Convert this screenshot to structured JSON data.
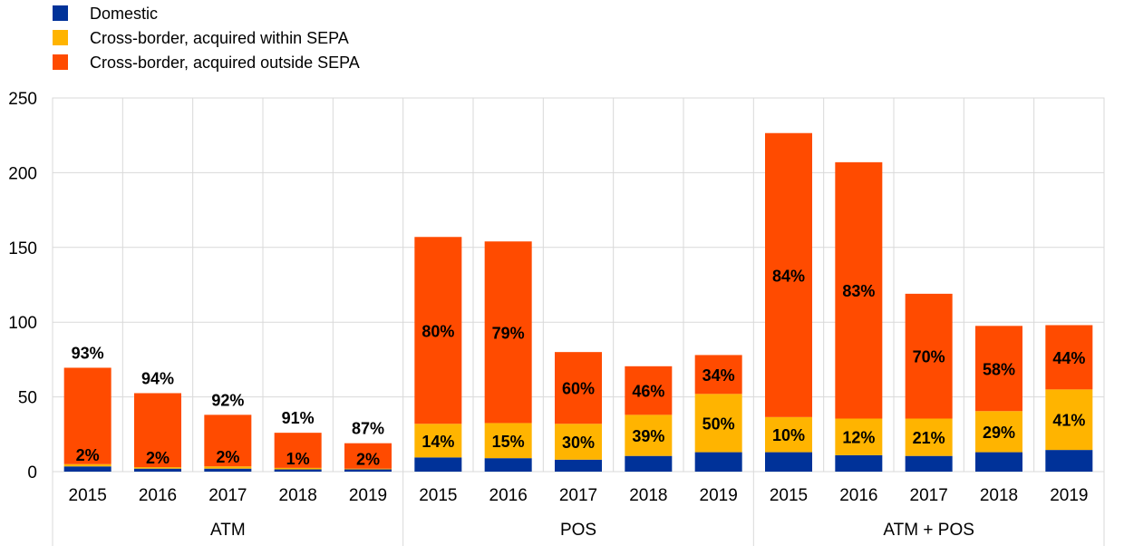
{
  "chart_data": {
    "type": "bar",
    "stacked": true,
    "groups": [
      {
        "name": "ATM",
        "categories": [
          "2015",
          "2016",
          "2017",
          "2018",
          "2019"
        ]
      },
      {
        "name": "POS",
        "categories": [
          "2015",
          "2016",
          "2017",
          "2018",
          "2019"
        ]
      },
      {
        "name": "ATM + POS",
        "categories": [
          "2015",
          "2016",
          "2017",
          "2018",
          "2019"
        ]
      }
    ],
    "series": [
      {
        "name": "Domestic",
        "color": "#003299",
        "values": [
          3.5,
          2,
          2,
          1.5,
          1.5,
          9.5,
          9,
          8,
          10.5,
          13,
          13,
          11,
          10.5,
          13,
          14.5
        ]
      },
      {
        "name": "Cross-border, acquired within SEPA",
        "color": "#FFB400",
        "values": [
          1.5,
          1,
          1.5,
          1,
          0.5,
          22.5,
          23.5,
          24,
          27.5,
          39,
          23.5,
          24.5,
          25,
          27.5,
          40.5
        ]
      },
      {
        "name": "Cross-border, acquired outside SEPA",
        "color": "#FF4B00",
        "values": [
          64.5,
          49.5,
          34.5,
          23.5,
          17,
          125,
          121.5,
          48,
          32.5,
          26,
          190,
          171.5,
          83.5,
          57,
          43
        ]
      }
    ],
    "data_labels": {
      "within_sepa": [
        "2%",
        "2%",
        "2%",
        "1%",
        "2%",
        "14%",
        "15%",
        "30%",
        "39%",
        "50%",
        "10%",
        "12%",
        "21%",
        "29%",
        "41%"
      ],
      "outside_sepa": [
        "93%",
        "94%",
        "92%",
        "91%",
        "87%",
        "80%",
        "79%",
        "60%",
        "46%",
        "34%",
        "84%",
        "83%",
        "70%",
        "58%",
        "44%"
      ]
    },
    "outside_label_on_top": [
      true,
      true,
      true,
      true,
      true,
      false,
      false,
      false,
      false,
      false,
      false,
      false,
      false,
      false,
      false
    ],
    "ylim": [
      0,
      250
    ],
    "yticks": [
      "0",
      "50",
      "100",
      "150",
      "200",
      "250"
    ],
    "ytick_values": [
      0,
      50,
      100,
      150,
      200,
      250
    ],
    "grid": true,
    "legend_position": "top-left",
    "title": "",
    "xlabel": "",
    "ylabel": ""
  }
}
